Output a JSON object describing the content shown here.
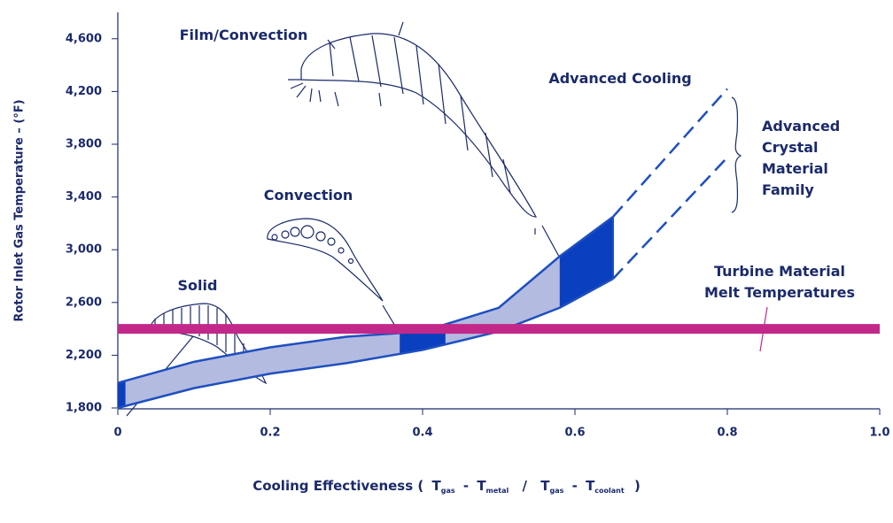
{
  "chart_data": {
    "type": "band",
    "y_label": "Rotor Inlet Gas Temperature – (°F)",
    "x_label": [
      "Cooling Effectiveness (",
      "T",
      "gas",
      "-",
      "T",
      "metal",
      "/",
      "T",
      "gas",
      "-",
      "T",
      "coolant",
      ")"
    ],
    "xlim": [
      0,
      1
    ],
    "ylim": [
      1800,
      4800
    ],
    "xticks": [
      0,
      0.2,
      0.4,
      0.6,
      0.8,
      {
        "value": 1,
        "label": "1.0"
      }
    ],
    "yticks": [
      {
        "value": 1800,
        "label": "1,800"
      },
      {
        "value": 2200,
        "label": "2,200"
      },
      {
        "value": 2600,
        "label": "2,600"
      },
      {
        "value": 3000,
        "label": "3,000"
      },
      {
        "value": 3400,
        "label": "3,400"
      },
      {
        "value": 3800,
        "label": "3,800"
      },
      {
        "value": 4200,
        "label": "4,200"
      },
      {
        "value": 4600,
        "label": "4,600"
      }
    ],
    "x": [
      0,
      0.1,
      0.2,
      0.3,
      0.4,
      0.5,
      0.58,
      0.65
    ],
    "upper": [
      1990,
      2150,
      2260,
      2340,
      2380,
      2560,
      2950,
      3250
    ],
    "lower": [
      1800,
      1950,
      2060,
      2140,
      2240,
      2380,
      2560,
      2780
    ],
    "extension": {
      "x": [
        0.65,
        0.8
      ],
      "upper": [
        3250,
        4220
      ],
      "lower": [
        2780,
        3700
      ]
    },
    "highlights": [
      [
        0,
        0.01
      ],
      [
        0.37,
        0.43
      ],
      [
        0.58,
        0.65
      ]
    ],
    "melt_temperature": 2400,
    "band_color": "#b3bbe0",
    "highlight_color": "#0a3fbf",
    "edge_color": "#1f4fc0",
    "melt_color": "#c2288a",
    "annotations": {
      "solid": "Solid",
      "convection": "Convection",
      "film": "Film/Convection",
      "advanced_cooling": "Advanced Cooling",
      "crystal": [
        "Advanced",
        "Crystal",
        "Material",
        "Family"
      ],
      "melt": [
        "Turbine Material",
        "Melt Temperatures"
      ]
    }
  }
}
